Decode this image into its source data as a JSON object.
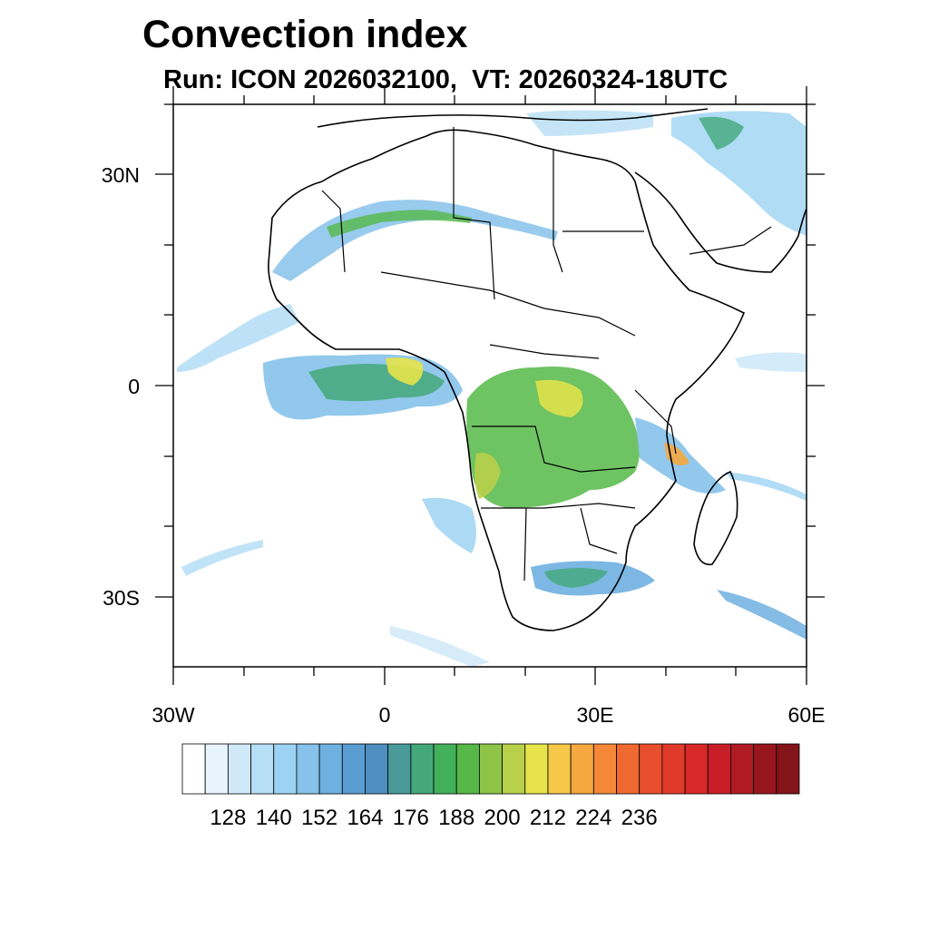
{
  "title": "Convection index",
  "subtitle": "Run: ICON 2026032100,  VT: 20260324-18UTC",
  "map": {
    "lat_labels": [
      "30N",
      "0",
      "30S"
    ],
    "lon_labels": [
      "30W",
      "0",
      "30E",
      "60E"
    ]
  },
  "colorbar": {
    "labels": [
      "128",
      "140",
      "152",
      "164",
      "176",
      "188",
      "200",
      "212",
      "224",
      "236"
    ],
    "colors": [
      "#ffffff",
      "#e8f4fc",
      "#cfe9f8",
      "#b6def5",
      "#9dd3f2",
      "#86c2ea",
      "#6eb0e0",
      "#5a9dd3",
      "#4f8fbf",
      "#4a9a9a",
      "#44a87a",
      "#43b05a",
      "#55b848",
      "#8ec448",
      "#b8d04a",
      "#e6e44a",
      "#f5c84a",
      "#f5a840",
      "#f28838",
      "#ee6a30",
      "#e84e2c",
      "#e03a2a",
      "#d82828",
      "#c81e28",
      "#b01a22",
      "#98161e",
      "#82141a"
    ]
  }
}
